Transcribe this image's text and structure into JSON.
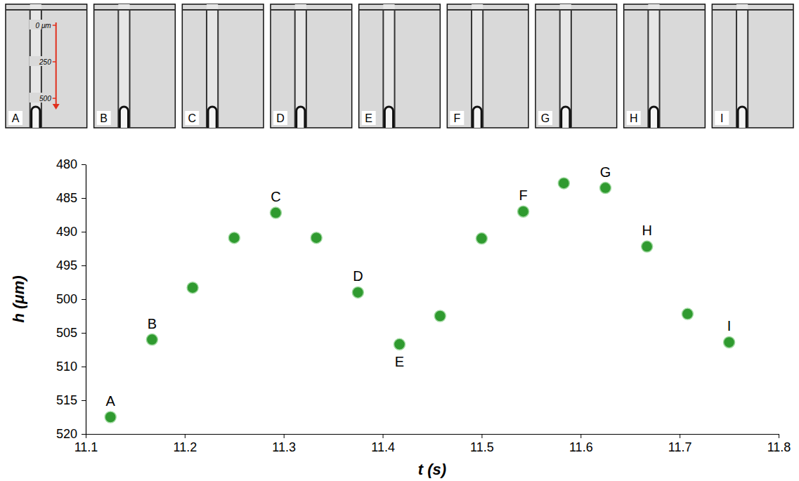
{
  "chart_data": {
    "type": "scatter",
    "x_label": "t (s)",
    "y_label": "h (μm)",
    "x": [
      11.125,
      11.167,
      11.208,
      11.25,
      11.292,
      11.333,
      11.375,
      11.417,
      11.458,
      11.5,
      11.542,
      11.583,
      11.625,
      11.667,
      11.708,
      11.75
    ],
    "values": [
      517.5,
      506,
      498.3,
      490.9,
      487.2,
      490.9,
      499,
      506.7,
      502.5,
      491,
      487,
      482.8,
      483.5,
      492.2,
      502.2,
      506.4
    ],
    "point_labels": [
      "A",
      "B",
      null,
      null,
      "C",
      null,
      "D",
      "E",
      null,
      null,
      "F",
      null,
      "G",
      "H",
      null,
      "I"
    ],
    "color": "#2f9a2f",
    "marker": "circle",
    "xlim": [
      11.1,
      11.8
    ],
    "xticks": [
      11.1,
      11.2,
      11.3,
      11.4,
      11.5,
      11.6,
      11.7,
      11.8
    ],
    "ylim": [
      520,
      480
    ],
    "yticks": [
      480,
      485,
      490,
      495,
      500,
      505,
      510,
      515,
      520
    ],
    "grid": false
  },
  "image_strip": {
    "panels": [
      "A",
      "B",
      "C",
      "D",
      "E",
      "F",
      "G",
      "H",
      "I"
    ],
    "scale_labels": [
      "0 μm",
      "250",
      "500"
    ]
  }
}
